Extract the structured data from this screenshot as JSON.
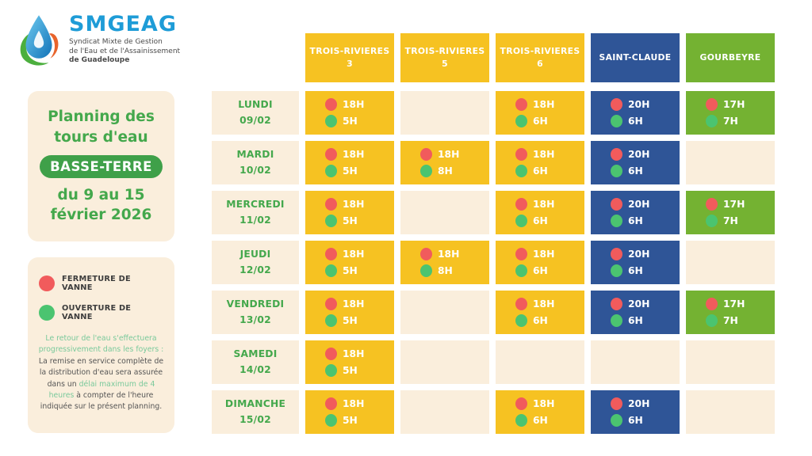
{
  "logo": {
    "name": "SMGEAG",
    "tagline": [
      "Syndicat Mixte de Gestion",
      "de l'Eau et de l'Assainissement",
      "de Guadeloupe"
    ]
  },
  "title_panel": {
    "line1": "Planning des",
    "line2": "tours d'eau",
    "region": "BASSE-TERRE",
    "line3": "du 9 au 15",
    "line4": "février 2026"
  },
  "legend": {
    "closed_label": "FERMETURE DE VANNE",
    "open_label": "OUVERTURE DE VANNE",
    "note_segments": [
      {
        "text": "Le retour de l'eau s'effectuera progressivement dans les foyers : ",
        "style": "green"
      },
      {
        "text": "La remise en service complète de la distribution d'eau sera assurée dans un ",
        "style": "dark"
      },
      {
        "text": "délai maximum de 4 heures",
        "style": "green"
      },
      {
        "text": " à compter de l'heure indiquée sur le présent planning.",
        "style": "dark"
      }
    ]
  },
  "table": {
    "columns": [
      {
        "label": "TROIS-RIVIERES",
        "sub": "3",
        "color": "#F6C222"
      },
      {
        "label": "TROIS-RIVIERES",
        "sub": "5",
        "color": "#F6C222"
      },
      {
        "label": "TROIS-RIVIERES",
        "sub": "6",
        "color": "#F6C222"
      },
      {
        "label": "SAINT-CLAUDE",
        "sub": "",
        "color": "#2F5597"
      },
      {
        "label": "GOURBEYRE",
        "sub": "",
        "color": "#74B232"
      }
    ],
    "rows": [
      {
        "day": "LUNDI",
        "date": "09/02",
        "cells": [
          {
            "close": "18H",
            "open": "5H"
          },
          null,
          {
            "close": "18H",
            "open": "6H"
          },
          {
            "close": "20H",
            "open": "6H"
          },
          {
            "close": "17H",
            "open": "7H"
          }
        ]
      },
      {
        "day": "MARDI",
        "date": "10/02",
        "cells": [
          {
            "close": "18H",
            "open": "5H"
          },
          {
            "close": "18H",
            "open": "8H"
          },
          {
            "close": "18H",
            "open": "6H"
          },
          {
            "close": "20H",
            "open": "6H"
          },
          null
        ]
      },
      {
        "day": "MERCREDI",
        "date": "11/02",
        "cells": [
          {
            "close": "18H",
            "open": "5H"
          },
          null,
          {
            "close": "18H",
            "open": "6H"
          },
          {
            "close": "20H",
            "open": "6H"
          },
          {
            "close": "17H",
            "open": "7H"
          }
        ]
      },
      {
        "day": "JEUDI",
        "date": "12/02",
        "cells": [
          {
            "close": "18H",
            "open": "5H"
          },
          {
            "close": "18H",
            "open": "8H"
          },
          {
            "close": "18H",
            "open": "6H"
          },
          {
            "close": "20H",
            "open": "6H"
          },
          null
        ]
      },
      {
        "day": "VENDREDI",
        "date": "13/02",
        "cells": [
          {
            "close": "18H",
            "open": "5H"
          },
          null,
          {
            "close": "18H",
            "open": "6H"
          },
          {
            "close": "20H",
            "open": "6H"
          },
          {
            "close": "17H",
            "open": "7H"
          }
        ]
      },
      {
        "day": "SAMEDI",
        "date": "14/02",
        "cells": [
          {
            "close": "18H",
            "open": "5H"
          },
          null,
          null,
          null,
          null
        ]
      },
      {
        "day": "DIMANCHE",
        "date": "15/02",
        "cells": [
          {
            "close": "18H",
            "open": "5H"
          },
          null,
          {
            "close": "18H",
            "open": "6H"
          },
          {
            "close": "20H",
            "open": "6H"
          },
          null
        ]
      }
    ]
  },
  "colors": {
    "cream": "#FAEEDC",
    "yellow": "#F6C222",
    "blue": "#2F5597",
    "green_column": "#74B232",
    "day_green": "#44A84C",
    "pill_green": "#3FA049",
    "red_dot": "#F15B5C",
    "green_dot": "#4BC470",
    "mint": "#79C99B",
    "logo_blue": "#1E9CD7"
  }
}
